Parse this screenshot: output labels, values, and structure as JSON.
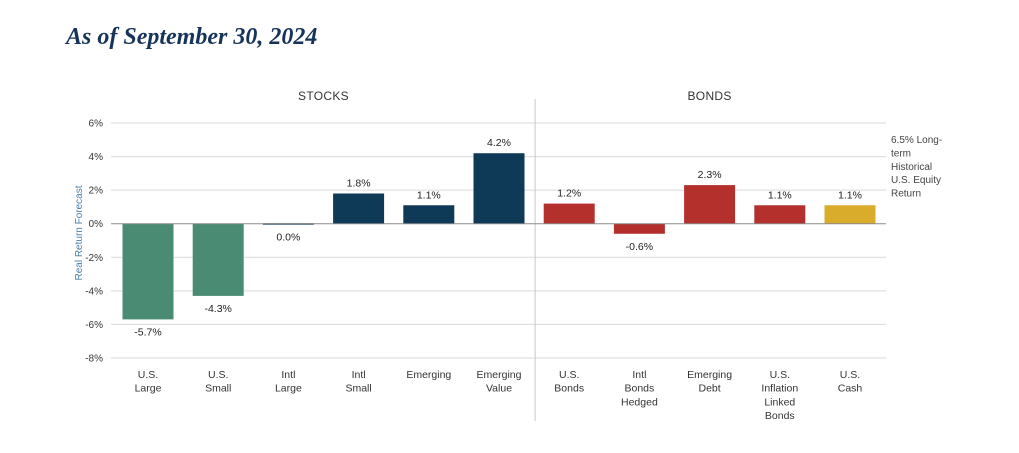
{
  "heading": "As of September 30, 2024",
  "chart_data": {
    "type": "bar",
    "ylabel": "Real Return Forecast",
    "ylim": [
      -8,
      6
    ],
    "y_ticks": [
      6,
      4,
      2,
      0,
      -2,
      -4,
      -6,
      -8
    ],
    "y_tick_labels": [
      "6%",
      "4%",
      "2%",
      "0%",
      "-2%",
      "-4%",
      "-6%",
      "-8%"
    ],
    "grid": true,
    "groups": [
      {
        "label": "STOCKS",
        "first": 0,
        "last": 5
      },
      {
        "label": "BONDS",
        "first": 6,
        "last": 10
      }
    ],
    "categories": [
      [
        "U.S.",
        "Large"
      ],
      [
        "U.S.",
        "Small"
      ],
      [
        "Intl",
        "Large"
      ],
      [
        "Intl",
        "Small"
      ],
      [
        "Emerging"
      ],
      [
        "Emerging",
        "Value"
      ],
      [
        "U.S.",
        "Bonds"
      ],
      [
        "Intl",
        "Bonds",
        "Hedged"
      ],
      [
        "Emerging",
        "Debt"
      ],
      [
        "U.S.",
        "Inflation",
        "Linked",
        "Bonds"
      ],
      [
        "U.S.",
        "Cash"
      ]
    ],
    "values": [
      -5.7,
      -4.3,
      0.0,
      1.8,
      1.1,
      4.2,
      1.2,
      -0.6,
      2.3,
      1.1,
      1.1
    ],
    "value_labels": [
      "-5.7%",
      "-4.3%",
      "0.0%",
      "1.8%",
      "1.1%",
      "4.2%",
      "1.2%",
      "-0.6%",
      "2.3%",
      "1.1%",
      "1.1%"
    ],
    "colors": [
      "#4a8b74",
      "#4a8b74",
      "#0e3a58",
      "#0e3a58",
      "#0e3a58",
      "#0e3a58",
      "#b3302d",
      "#b3302d",
      "#b3302d",
      "#b3302d",
      "#d9ac2b"
    ],
    "annotation": [
      "6.5% Long-",
      "term",
      "Historical",
      "U.S. Equity",
      "Return"
    ]
  }
}
